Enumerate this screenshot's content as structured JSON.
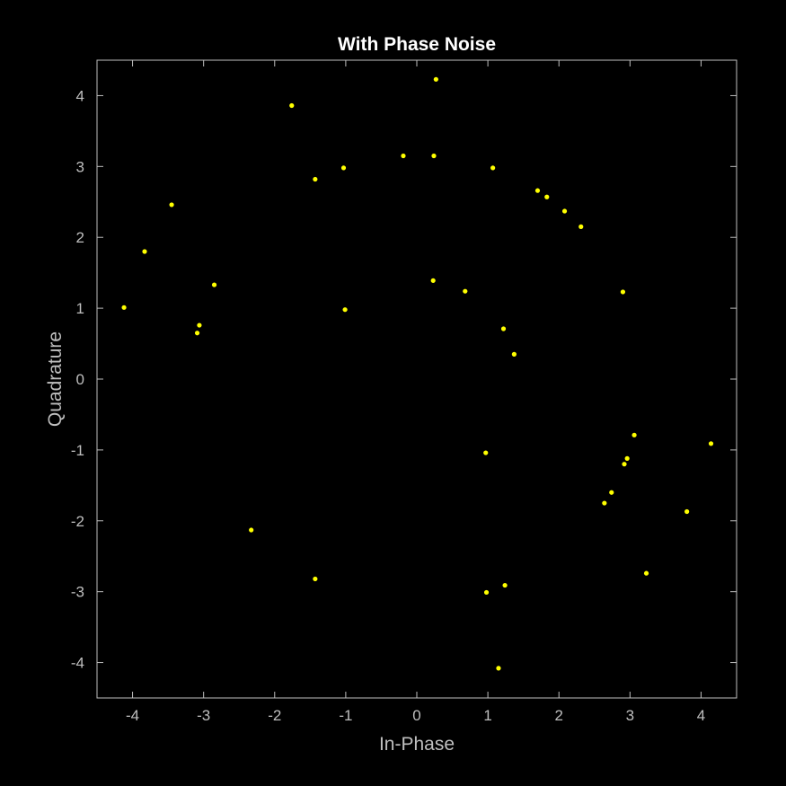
{
  "chart_data": {
    "type": "scatter",
    "title": "With Phase Noise",
    "xlabel": "In-Phase",
    "ylabel": "Quadrature",
    "xlim": [
      -4.5,
      4.5
    ],
    "ylim": [
      -4.5,
      4.5
    ],
    "xticks": [
      -4,
      -3,
      -2,
      -1,
      0,
      1,
      2,
      3,
      4
    ],
    "yticks": [
      -4,
      -3,
      -2,
      -1,
      0,
      1,
      2,
      3,
      4
    ],
    "grid": false,
    "background": "#000000",
    "axes_color": "#bfbfbf",
    "series": [
      {
        "marker_color": "#ffff00",
        "points": [
          [
            0.27,
            4.23
          ],
          [
            -1.76,
            3.86
          ],
          [
            -1.43,
            2.82
          ],
          [
            -1.03,
            2.98
          ],
          [
            -0.19,
            3.15
          ],
          [
            0.24,
            3.15
          ],
          [
            1.07,
            2.98
          ],
          [
            1.7,
            2.66
          ],
          [
            1.83,
            2.57
          ],
          [
            2.08,
            2.37
          ],
          [
            2.31,
            2.15
          ],
          [
            -3.45,
            2.46
          ],
          [
            -3.83,
            1.8
          ],
          [
            -2.85,
            1.33
          ],
          [
            -4.12,
            1.01
          ],
          [
            -3.06,
            0.76
          ],
          [
            -3.09,
            0.65
          ],
          [
            -1.01,
            0.98
          ],
          [
            0.23,
            1.39
          ],
          [
            0.68,
            1.24
          ],
          [
            1.22,
            0.71
          ],
          [
            1.37,
            0.35
          ],
          [
            2.9,
            1.23
          ],
          [
            3.06,
            -0.79
          ],
          [
            2.96,
            -1.12
          ],
          [
            2.92,
            -1.2
          ],
          [
            4.14,
            -0.91
          ],
          [
            0.97,
            -1.04
          ],
          [
            2.74,
            -1.6
          ],
          [
            2.64,
            -1.75
          ],
          [
            3.8,
            -1.87
          ],
          [
            -2.33,
            -2.13
          ],
          [
            -1.43,
            -2.82
          ],
          [
            3.23,
            -2.74
          ],
          [
            0.98,
            -3.01
          ],
          [
            1.24,
            -2.91
          ],
          [
            1.15,
            -4.08
          ]
        ]
      }
    ]
  }
}
